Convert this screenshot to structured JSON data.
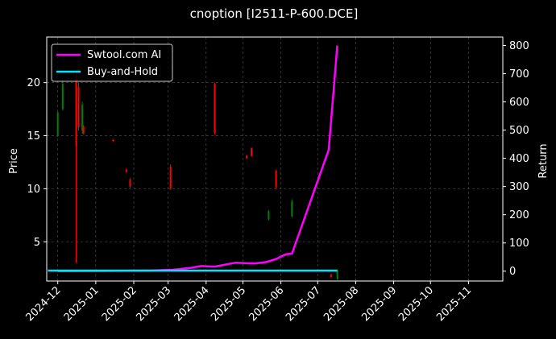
{
  "chart_data": {
    "type": "line",
    "title": "cnoption [I2511-P-600.DCE]",
    "ylabel": "Price",
    "ylabel_right": "Return",
    "grid": true,
    "legend_position": "top-left",
    "colors": {
      "background": "#000000",
      "strategy": "#ff00ff",
      "buy_hold": "#00e5ff",
      "candle_up": "#008000",
      "candle_down": "#ff0000",
      "grid": "#555555"
    },
    "x_ticks": [
      "2024-12",
      "2025-01",
      "2025-02",
      "2025-03",
      "2025-04",
      "2025-05",
      "2025-06",
      "2025-07",
      "2025-08",
      "2025-09",
      "2025-10",
      "2025-11"
    ],
    "y_left": {
      "lim": [
        1.3,
        24.3
      ],
      "ticks": [
        5,
        10,
        15,
        20
      ]
    },
    "y_right": {
      "lim": [
        -35,
        830
      ],
      "ticks": [
        0,
        100,
        200,
        300,
        400,
        500,
        600,
        700,
        800
      ]
    },
    "series": [
      {
        "name": "Swtool.com AI",
        "axis": "right",
        "points": [
          [
            "2024-12-01",
            0
          ],
          [
            "2025-01-15",
            1
          ],
          [
            "2025-02-15",
            2
          ],
          [
            "2025-03-05",
            5
          ],
          [
            "2025-03-20",
            12
          ],
          [
            "2025-03-28",
            18
          ],
          [
            "2025-04-08",
            16
          ],
          [
            "2025-04-25",
            30
          ],
          [
            "2025-05-10",
            27
          ],
          [
            "2025-05-20",
            32
          ],
          [
            "2025-05-28",
            43
          ],
          [
            "2025-06-05",
            60
          ],
          [
            "2025-06-10",
            62
          ],
          [
            "2025-07-10",
            430
          ],
          [
            "2025-07-17",
            800
          ]
        ]
      },
      {
        "name": "Buy-and-Hold",
        "axis": "right",
        "points": [
          [
            "2024-11-23",
            2
          ],
          [
            "2025-07-17",
            2
          ]
        ]
      }
    ],
    "candles": [
      {
        "date": "2024-12-01",
        "open": 15.0,
        "close": 17.2,
        "high": 17.3,
        "low": 14.9
      },
      {
        "date": "2024-12-05",
        "open": 17.5,
        "close": 19.9,
        "high": 20.3,
        "low": 17.4
      },
      {
        "date": "2024-12-16",
        "open": 20.5,
        "close": 14.0,
        "high": 21.0,
        "low": 3.0
      },
      {
        "date": "2024-12-18",
        "open": 19.6,
        "close": 15.8,
        "high": 20.0,
        "low": 15.5
      },
      {
        "date": "2024-12-21",
        "open": 15.5,
        "close": 17.9,
        "high": 18.2,
        "low": 15.2
      },
      {
        "date": "2024-12-22",
        "open": 15.9,
        "close": 15.2,
        "high": 16.0,
        "low": 15.1
      },
      {
        "date": "2025-01-15",
        "open": 14.6,
        "close": 14.5,
        "high": 14.7,
        "low": 14.4
      },
      {
        "date": "2025-01-26",
        "open": 11.8,
        "close": 11.6,
        "high": 11.9,
        "low": 11.5
      },
      {
        "date": "2025-01-29",
        "open": 10.9,
        "close": 10.2,
        "high": 11.0,
        "low": 10.1
      },
      {
        "date": "2025-03-03",
        "open": 12.1,
        "close": 10.0,
        "high": 12.3,
        "low": 9.9
      },
      {
        "date": "2025-04-08",
        "open": 19.9,
        "close": 15.3,
        "high": 20.0,
        "low": 15.1
      },
      {
        "date": "2025-05-04",
        "open": 13.1,
        "close": 12.9,
        "high": 13.2,
        "low": 12.8
      },
      {
        "date": "2025-05-08",
        "open": 13.8,
        "close": 13.1,
        "high": 13.9,
        "low": 13.0
      },
      {
        "date": "2025-05-22",
        "open": 7.1,
        "close": 7.9,
        "high": 8.0,
        "low": 7.0
      },
      {
        "date": "2025-05-28",
        "open": 11.7,
        "close": 10.2,
        "high": 11.8,
        "low": 10.0
      },
      {
        "date": "2025-06-10",
        "open": 7.4,
        "close": 8.8,
        "high": 9.0,
        "low": 7.3
      },
      {
        "date": "2025-07-12",
        "open": 1.9,
        "close": 1.7,
        "high": 2.0,
        "low": 1.6
      },
      {
        "date": "2025-07-17",
        "open": 1.5,
        "close": 2.3,
        "high": 2.4,
        "low": 1.4
      }
    ]
  }
}
